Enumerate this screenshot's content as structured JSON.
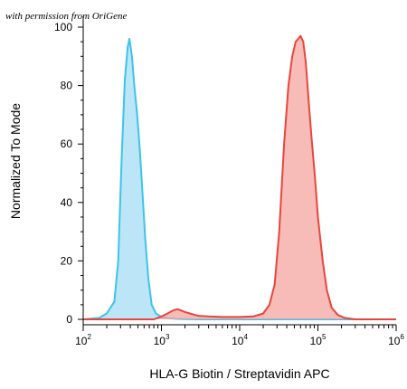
{
  "credit_text": "with permission from OriGene",
  "chart_data": {
    "type": "area",
    "title": "",
    "xlabel": "HLA-G Biotin / Streptavidin APC",
    "ylabel": "Normalized To Mode",
    "xscale": "log",
    "xlim": [
      100,
      1000000
    ],
    "ylim": [
      0,
      100
    ],
    "grid": false,
    "legend": "none",
    "x_ticks": [
      {
        "base": "10",
        "exp": "2",
        "value": 100
      },
      {
        "base": "10",
        "exp": "3",
        "value": 1000
      },
      {
        "base": "10",
        "exp": "4",
        "value": 10000
      },
      {
        "base": "10",
        "exp": "5",
        "value": 100000
      },
      {
        "base": "10",
        "exp": "6",
        "value": 1000000
      }
    ],
    "y_ticks": [
      "0",
      "20",
      "40",
      "60",
      "80",
      "100"
    ],
    "series": [
      {
        "color": "#3cc4ec",
        "fill": "#a6dcf4",
        "x": [
          100,
          160,
          200,
          250,
          280,
          310,
          340,
          370,
          390,
          420,
          450,
          490,
          530,
          570,
          620,
          680,
          750,
          850,
          1000,
          1200,
          1500,
          2000,
          3000,
          5000,
          10000,
          100000,
          1000000
        ],
        "y": [
          0,
          0.5,
          2,
          6,
          20,
          55,
          82,
          93,
          96,
          90,
          80,
          70,
          58,
          44,
          28,
          14,
          5,
          2,
          0.8,
          0.4,
          0.2,
          0.1,
          0,
          0,
          0,
          0,
          0
        ]
      },
      {
        "color": "#e8463c",
        "fill": "#f4a4a0",
        "x": [
          100,
          800,
          1000,
          1200,
          1400,
          1600,
          1800,
          2000,
          2300,
          2700,
          3000,
          4000,
          6000,
          10000,
          15000,
          20000,
          24000,
          28000,
          32000,
          37000,
          42000,
          47000,
          52000,
          56000,
          60000,
          65000,
          70000,
          76000,
          83000,
          92000,
          100000,
          115000,
          130000,
          150000,
          180000,
          220000,
          300000,
          1000000
        ],
        "y": [
          0,
          0,
          1,
          2,
          3,
          3.5,
          3,
          2.5,
          2,
          1.5,
          1.2,
          1,
          0.8,
          0.8,
          1,
          2,
          5,
          12,
          30,
          60,
          80,
          90,
          95,
          96,
          97,
          95,
          88,
          75,
          62,
          48,
          35,
          20,
          10,
          4,
          1.5,
          0.5,
          0,
          0
        ]
      }
    ]
  }
}
